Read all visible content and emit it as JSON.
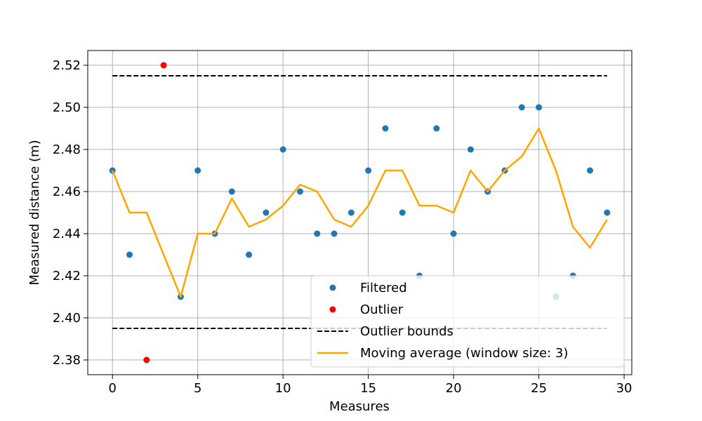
{
  "chart_data": {
    "type": "scatter",
    "title": "",
    "xlabel": "Measures",
    "ylabel": "Measured distance (m)",
    "xlim": [
      -1.45,
      30.45
    ],
    "ylim": [
      2.373,
      2.527
    ],
    "x_ticks": [
      0,
      5,
      10,
      15,
      20,
      25,
      30
    ],
    "y_ticks": [
      2.38,
      2.4,
      2.42,
      2.44,
      2.46,
      2.48,
      2.5,
      2.52
    ],
    "x_tick_labels": [
      "0",
      "5",
      "10",
      "15",
      "20",
      "25",
      "30"
    ],
    "y_tick_labels": [
      "2.38",
      "2.40",
      "2.42",
      "2.44",
      "2.46",
      "2.48",
      "2.50",
      "2.52"
    ],
    "grid": true,
    "legend_position": "bottom-right",
    "series": [
      {
        "name": "Filtered",
        "kind": "scatter",
        "color": "#1f77b4",
        "points": [
          [
            0,
            2.47
          ],
          [
            1,
            2.43
          ],
          [
            4,
            2.41
          ],
          [
            5,
            2.47
          ],
          [
            6,
            2.44
          ],
          [
            7,
            2.46
          ],
          [
            8,
            2.43
          ],
          [
            9,
            2.45
          ],
          [
            10,
            2.48
          ],
          [
            11,
            2.46
          ],
          [
            12,
            2.44
          ],
          [
            13,
            2.44
          ],
          [
            14,
            2.45
          ],
          [
            15,
            2.47
          ],
          [
            16,
            2.49
          ],
          [
            17,
            2.45
          ],
          [
            18,
            2.42
          ],
          [
            19,
            2.49
          ],
          [
            20,
            2.44
          ],
          [
            21,
            2.48
          ],
          [
            22,
            2.46
          ],
          [
            23,
            2.47
          ],
          [
            24,
            2.5
          ],
          [
            25,
            2.5
          ],
          [
            26,
            2.41
          ],
          [
            27,
            2.42
          ],
          [
            28,
            2.47
          ],
          [
            29,
            2.45
          ]
        ]
      },
      {
        "name": "Outlier",
        "kind": "scatter",
        "color": "#ff0000",
        "points": [
          [
            2,
            2.38
          ],
          [
            3,
            2.52
          ]
        ]
      },
      {
        "name": "Outlier bounds",
        "kind": "dashed-line",
        "color": "#000000",
        "x_range": [
          0,
          29
        ],
        "values": [
          2.395,
          2.515
        ]
      },
      {
        "name": "Moving average (window size: 3)",
        "kind": "line",
        "color": "#ffa500",
        "points": [
          [
            0,
            2.47
          ],
          [
            1,
            2.45
          ],
          [
            2,
            2.45
          ],
          [
            3,
            2.43
          ],
          [
            4,
            2.41
          ],
          [
            5,
            2.44
          ],
          [
            6,
            2.44
          ],
          [
            7,
            2.4567
          ],
          [
            8,
            2.4433
          ],
          [
            9,
            2.4467
          ],
          [
            10,
            2.4533
          ],
          [
            11,
            2.4633
          ],
          [
            12,
            2.46
          ],
          [
            13,
            2.4467
          ],
          [
            14,
            2.4433
          ],
          [
            15,
            2.4533
          ],
          [
            16,
            2.47
          ],
          [
            17,
            2.47
          ],
          [
            18,
            2.4533
          ],
          [
            19,
            2.4533
          ],
          [
            20,
            2.45
          ],
          [
            21,
            2.47
          ],
          [
            22,
            2.46
          ],
          [
            23,
            2.47
          ],
          [
            24,
            2.4767
          ],
          [
            25,
            2.49
          ],
          [
            26,
            2.47
          ],
          [
            27,
            2.4433
          ],
          [
            28,
            2.4333
          ],
          [
            29,
            2.4467
          ]
        ]
      }
    ]
  }
}
